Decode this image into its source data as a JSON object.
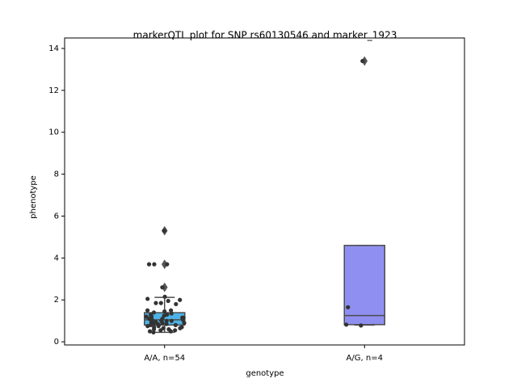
{
  "chart_data": {
    "type": "box",
    "title": "markerQTL plot for SNP rs60130546 and marker_1923",
    "x_label": "genotype",
    "y_label": "phenotype",
    "categories": [
      "A/A, n=54",
      "A/G, n=4"
    ],
    "ylim": [
      -0.15,
      14.5
    ],
    "yticks": [
      0,
      2,
      4,
      6,
      8,
      10,
      12,
      14
    ],
    "grid": false,
    "groups": [
      {
        "color": "#4db3e6",
        "q1": 0.8,
        "median": 1.05,
        "q3": 1.39,
        "whisker_low": 0.45,
        "whisker_high": 2.12,
        "outliers": [
          5.3,
          3.7,
          2.6
        ],
        "points": [
          5.3,
          3.7,
          3.7,
          3.7,
          2.6,
          2.15,
          2.05,
          2.0,
          1.95,
          1.85,
          1.85,
          1.8,
          1.5,
          1.5,
          1.45,
          1.4,
          1.35,
          1.3,
          1.3,
          1.25,
          1.2,
          1.2,
          1.15,
          1.15,
          1.1,
          1.1,
          1.05,
          1.05,
          1.0,
          1.0,
          1.0,
          0.95,
          0.95,
          0.9,
          0.9,
          0.9,
          0.85,
          0.85,
          0.8,
          0.8,
          0.8,
          0.75,
          0.75,
          0.7,
          0.7,
          0.65,
          0.65,
          0.6,
          0.6,
          0.55,
          0.55,
          0.5,
          0.5,
          0.45
        ]
      },
      {
        "color": "#8f8ff2",
        "q1": 0.82,
        "median": 1.25,
        "q3": 4.6,
        "whisker_low": 0.8,
        "whisker_high": 4.6,
        "outliers": [
          13.4
        ],
        "points": [
          13.4,
          1.65,
          0.82,
          0.78
        ]
      }
    ]
  }
}
